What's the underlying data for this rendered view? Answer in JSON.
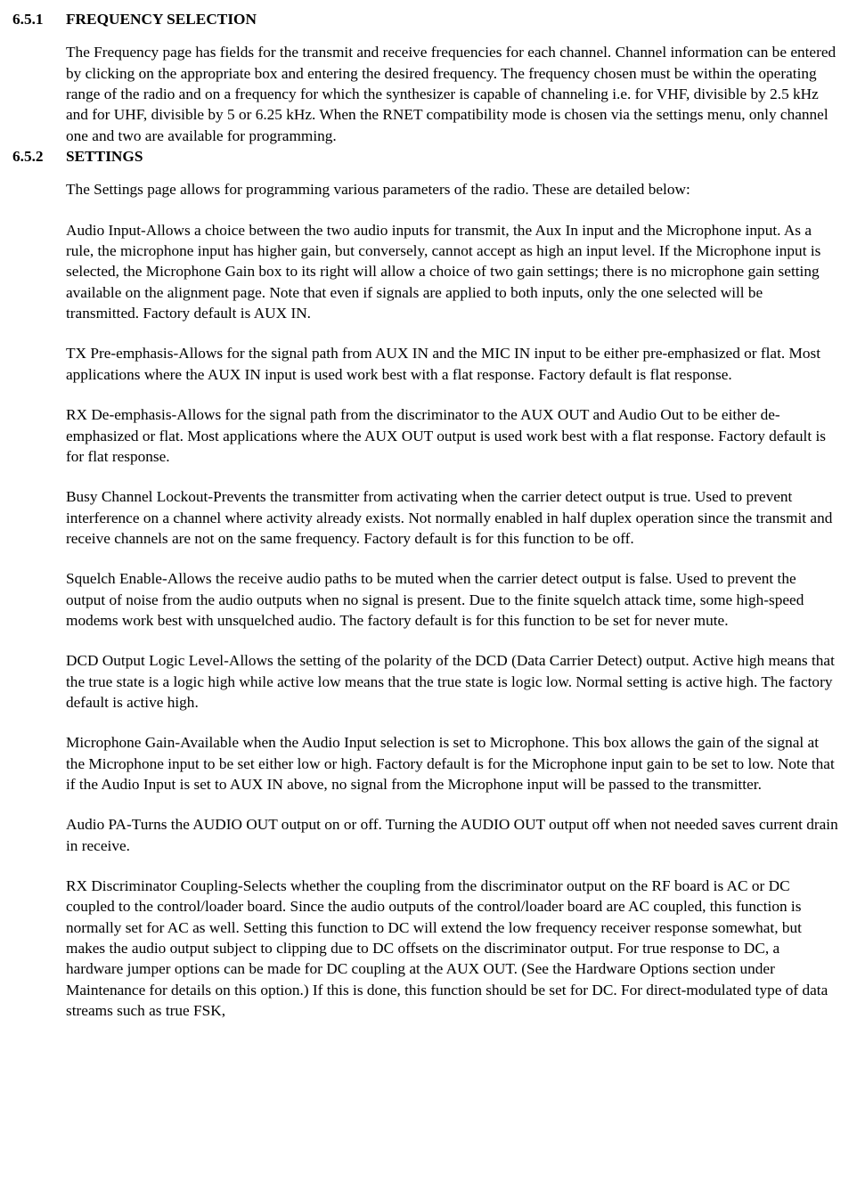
{
  "section1": {
    "num": "6.5.1",
    "title": "FREQUENCY SELECTION",
    "paras": [
      "The Frequency page has fields for the transmit and receive frequencies for each channel.  Channel information can be entered by clicking on the appropriate box and entering the desired frequency.  The frequency chosen must be within the operating range of the radio and on a frequency for which the synthesizer is capable of channeling i.e. for VHF, divisible by 2.5 kHz and for UHF, divisible by 5 or 6.25 kHz.  When the RNET compatibility mode is chosen via the settings menu, only channel one and two are available for programming."
    ]
  },
  "section2": {
    "num": "6.5.2",
    "title": "SETTINGS",
    "paras": [
      "The Settings page allows for programming various parameters of the radio.  These are detailed below:",
      "Audio Input-Allows a choice between the two audio inputs for transmit, the Aux In input and the Microphone input. As a rule, the microphone input has higher gain, but conversely, cannot accept as high an input level. If the Microphone input is selected, the Microphone Gain box to its right will allow a choice of two gain settings; there is no microphone gain setting available on the alignment page. Note that even if signals are applied to both inputs, only the one selected will be transmitted. Factory default is AUX IN.",
      "TX Pre-emphasis-Allows for the signal path from AUX IN and the MIC IN input to be either pre-emphasized or flat.  Most applications where the AUX IN input is used work best with a flat response.  Factory default is flat response.",
      "RX De-emphasis-Allows for the signal path from the discriminator to the AUX OUT and Audio Out to be either de-emphasized or flat.  Most applications where the AUX OUT output is used work best with a flat response.  Factory default is for flat response.",
      "Busy Channel Lockout-Prevents the transmitter from activating when the carrier detect output is true.  Used to prevent interference on a channel where activity already exists.  Not normally enabled in half duplex operation since the transmit and receive channels are not on the same frequency.  Factory default is for this function to be off.",
      "Squelch Enable-Allows the receive audio paths to be muted when the carrier detect output is false.  Used to prevent the output of noise from the audio outputs when no signal is present.  Due to the finite squelch attack time, some high-speed modems work best with unsquelched audio.  The factory default is for this function to be set for never mute.",
      "DCD Output Logic Level-Allows the setting of the polarity of the DCD (Data Carrier Detect) output.  Active high means that the true state is a logic high while active low means that the true state is logic low.  Normal setting is active high.  The factory default is active high.",
      "Microphone Gain-Available when the Audio Input selection is set to Microphone. This box allows the gain of the signal at the Microphone input to be set either low or high.  Factory default is for the Microphone input gain to be set to low. Note that if the Audio Input is set to AUX IN above, no signal from the Microphone input will be passed to the transmitter.",
      "Audio PA-Turns the AUDIO OUT output on or off. Turning the AUDIO OUT output off when not needed saves current drain in receive.",
      "RX Discriminator Coupling-Selects whether the coupling from the discriminator output on the RF board is AC or DC coupled to the control/loader board.  Since the audio outputs of the control/loader board are AC coupled, this function is normally set for AC as well.  Setting this function to DC will extend the low frequency receiver response somewhat, but makes the audio output subject to clipping due to DC offsets on the discriminator output. For true response to DC, a hardware jumper options can be made for DC coupling at the AUX OUT.  (See the Hardware Options section under Maintenance for details on this option.)  If this is done, this function should be set for DC. For direct-modulated type of data streams such as true FSK,"
    ]
  }
}
